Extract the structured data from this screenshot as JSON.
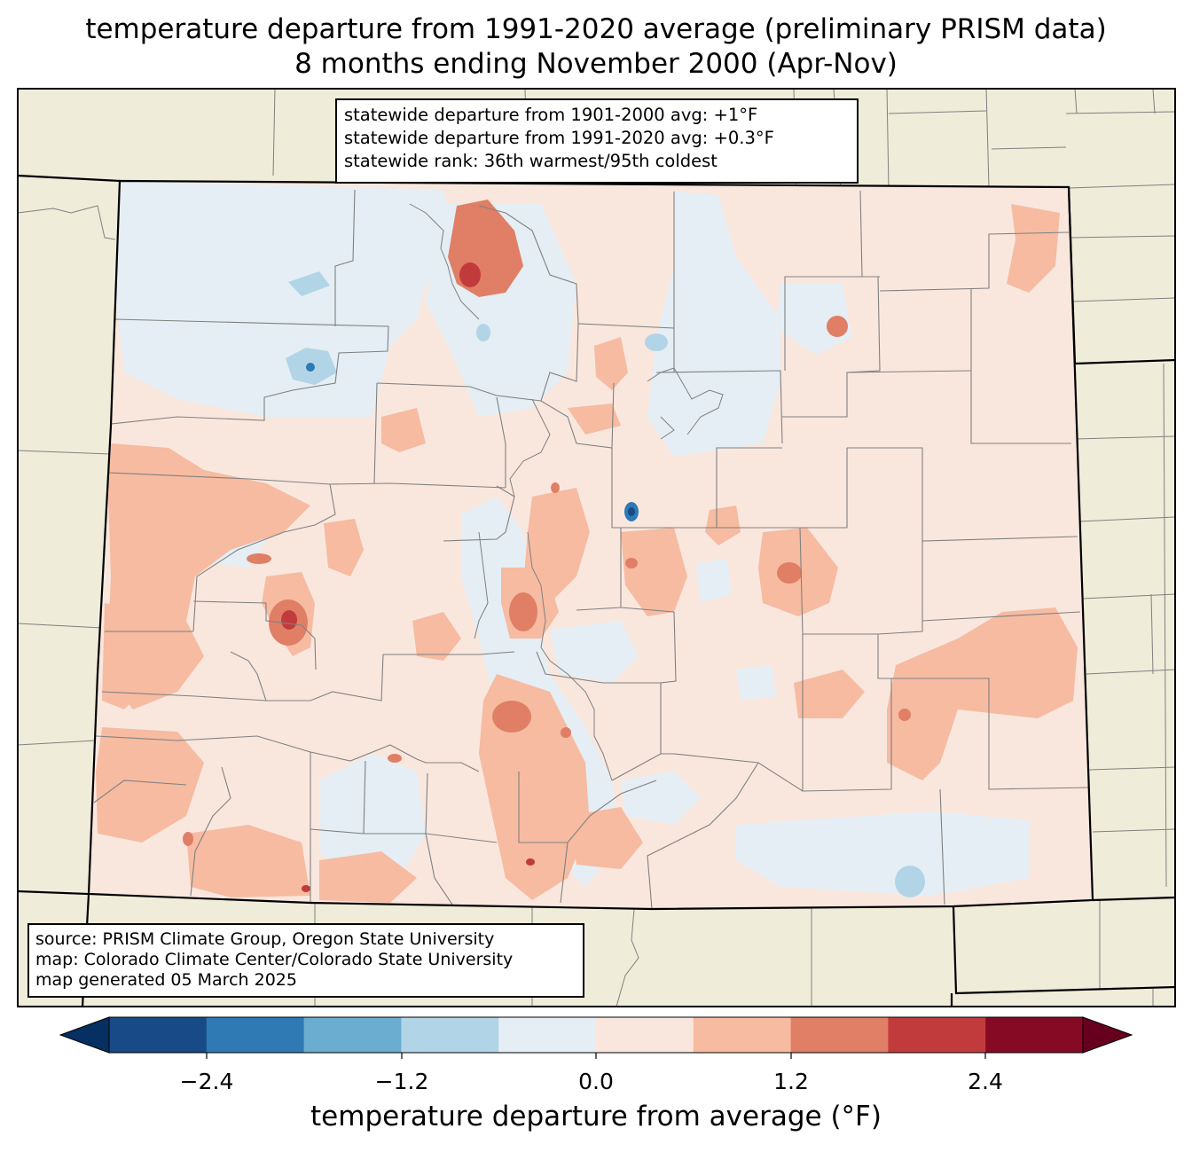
{
  "title": {
    "line1": "temperature departure from 1991-2020 average (preliminary PRISM data)",
    "line2": "8 months ending November 2000 (Apr-Nov)"
  },
  "stats": {
    "line1": "statewide departure from 1901-2000 avg: +1°F",
    "line2": "statewide departure from 1991-2020 avg: +0.3°F",
    "line3": "statewide rank: 36th warmest/95th coldest"
  },
  "source": {
    "line1": "source: PRISM Climate Group, Oregon State University",
    "line2": "map: Colorado Climate Center/Colorado State University",
    "line3": "map generated 05 March 2025"
  },
  "colorbar": {
    "label": "temperature departure from average (°F)",
    "ticks": [
      "−2.4",
      "−1.2",
      "0.0",
      "1.2",
      "2.4"
    ],
    "colors": [
      "#053061",
      "#174a86",
      "#2f79b5",
      "#6bacd1",
      "#b1d5e7",
      "#e4eef4",
      "#f9e7de",
      "#f6bba1",
      "#e07f66",
      "#c13b3c",
      "#870a24",
      "#67001f"
    ]
  },
  "colors": {
    "land_outside": "#efecda",
    "state_fill": "#f9e7de",
    "warm_light": "#f6bba1",
    "warm_mid": "#e07f66",
    "warm_strong": "#c13b3c",
    "cool_light": "#e4eef4",
    "cool_mid": "#b1d5e7",
    "cool_strong": "#2f79b5",
    "county_lines": "#808080"
  }
}
